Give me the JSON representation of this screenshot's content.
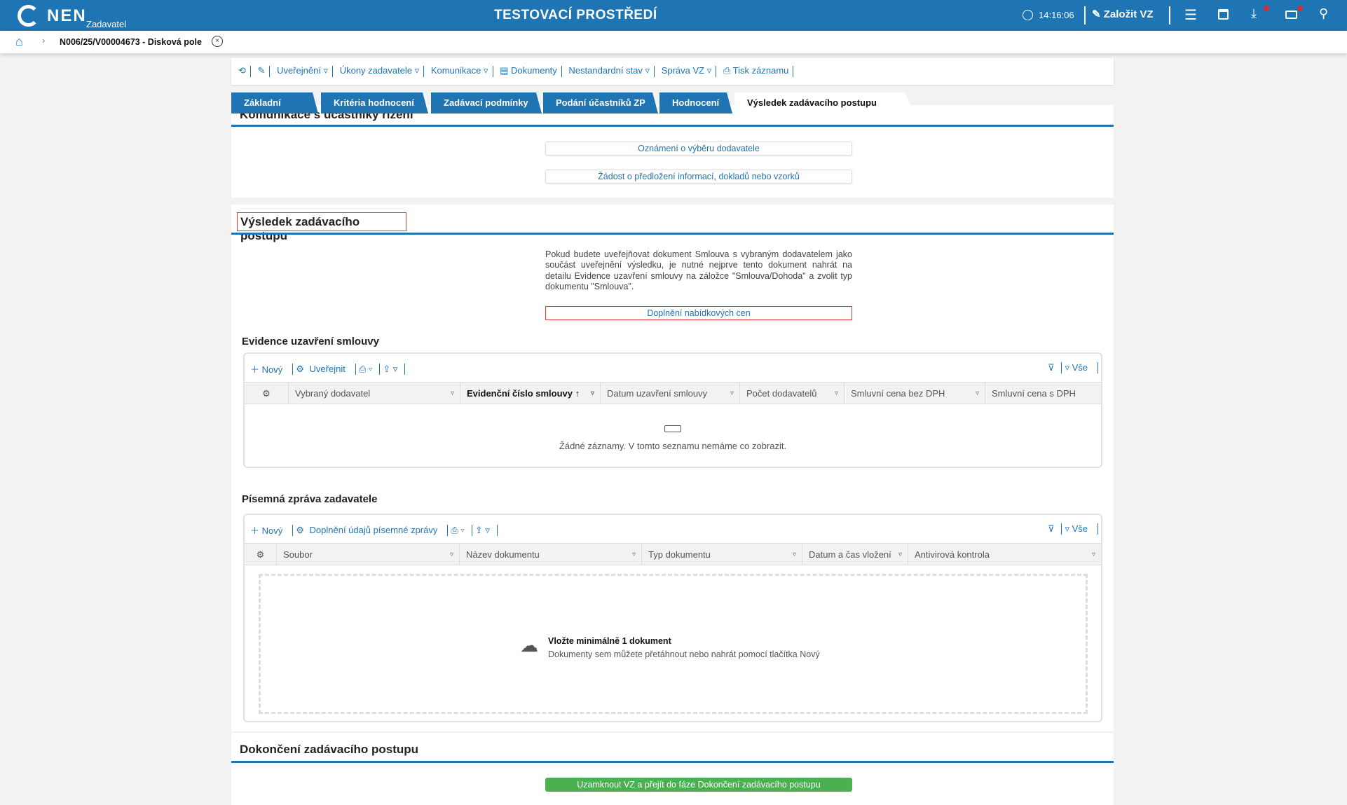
{
  "header": {
    "logo": "NEN",
    "role": "Zadavatel",
    "title": "TESTOVACÍ PROSTŘEDÍ",
    "time": "14:16:06",
    "create_label": "Založit VZ",
    "icons": [
      "clock-icon",
      "edit-icon",
      "menu-icon",
      "calendar-icon",
      "download-icon",
      "mail-icon",
      "user-icon"
    ],
    "brand_color": "#1f74b4"
  },
  "breadcrumb": {
    "current": "N006/25/V00004673 - Disková pole"
  },
  "toolbar": {
    "items": [
      "Uveřejnění",
      "Úkony zadavatele",
      "Komunikace",
      "Dokumenty",
      "Nestandardní stav",
      "Správa VZ",
      "Tisk záznamu"
    ]
  },
  "tabs": [
    "Základní údaje",
    "Kritéria hodnocení",
    "Zadávací podmínky",
    "Podání účastníků ZP",
    "Hodnocení",
    "Výsledek zadávacího postupu"
  ],
  "communication": {
    "title": "Komunikace s účastníky řízení",
    "buttons": [
      "Oznámení o výběru dodavatele",
      "Žádost o předložení informací, dokladů nebo vzorků"
    ]
  },
  "result": {
    "title": "Výsledek zadávacího postupu",
    "info": "Pokud budete uveřejňovat dokument Smlouva s vybraným dodavatelem jako součást uveřejnění výsledku, je nutné nejprve tento dokument nahrát na detailu Evidence uzavření smlouvy na záložce \"Smlouva/Dohoda\" a zvolit typ dokumentu \"Smlouva\".",
    "prices_button": "Doplnění nabídkových cen"
  },
  "contracts": {
    "title": "Evidence uzavření smlouvy",
    "new": "Nový",
    "publish": "Uveřejnit",
    "all": "Vše",
    "columns": [
      "Vybraný dodavatel",
      "Evidenční číslo smlouvy",
      "Datum uzavření smlouvy",
      "Počet dodavatelů",
      "Smluvní cena bez DPH",
      "Smluvní cena s DPH"
    ],
    "empty": "Žádné záznamy. V tomto seznamu nemáme co zobrazit."
  },
  "report": {
    "title": "Písemná zpráva zadavatele",
    "new": "Nový",
    "fill": "Doplnění údajů písemné zprávy",
    "all": "Vše",
    "columns": [
      "Soubor",
      "Název dokumentu",
      "Typ dokumentu",
      "Datum a čas vložení",
      "Antivirová kontrola"
    ],
    "drop_title": "Vložte minimálně 1 dokument",
    "drop_hint": "Dokumenty sem můžete přetáhnout nebo nahrát pomocí tlačítka Nový"
  },
  "completion": {
    "title": "Dokončení zadávacího postupu",
    "button": "Uzamknout VZ a přejít do fáze Dokončení zadávacího postupu",
    "button_color": "#4caf50"
  }
}
